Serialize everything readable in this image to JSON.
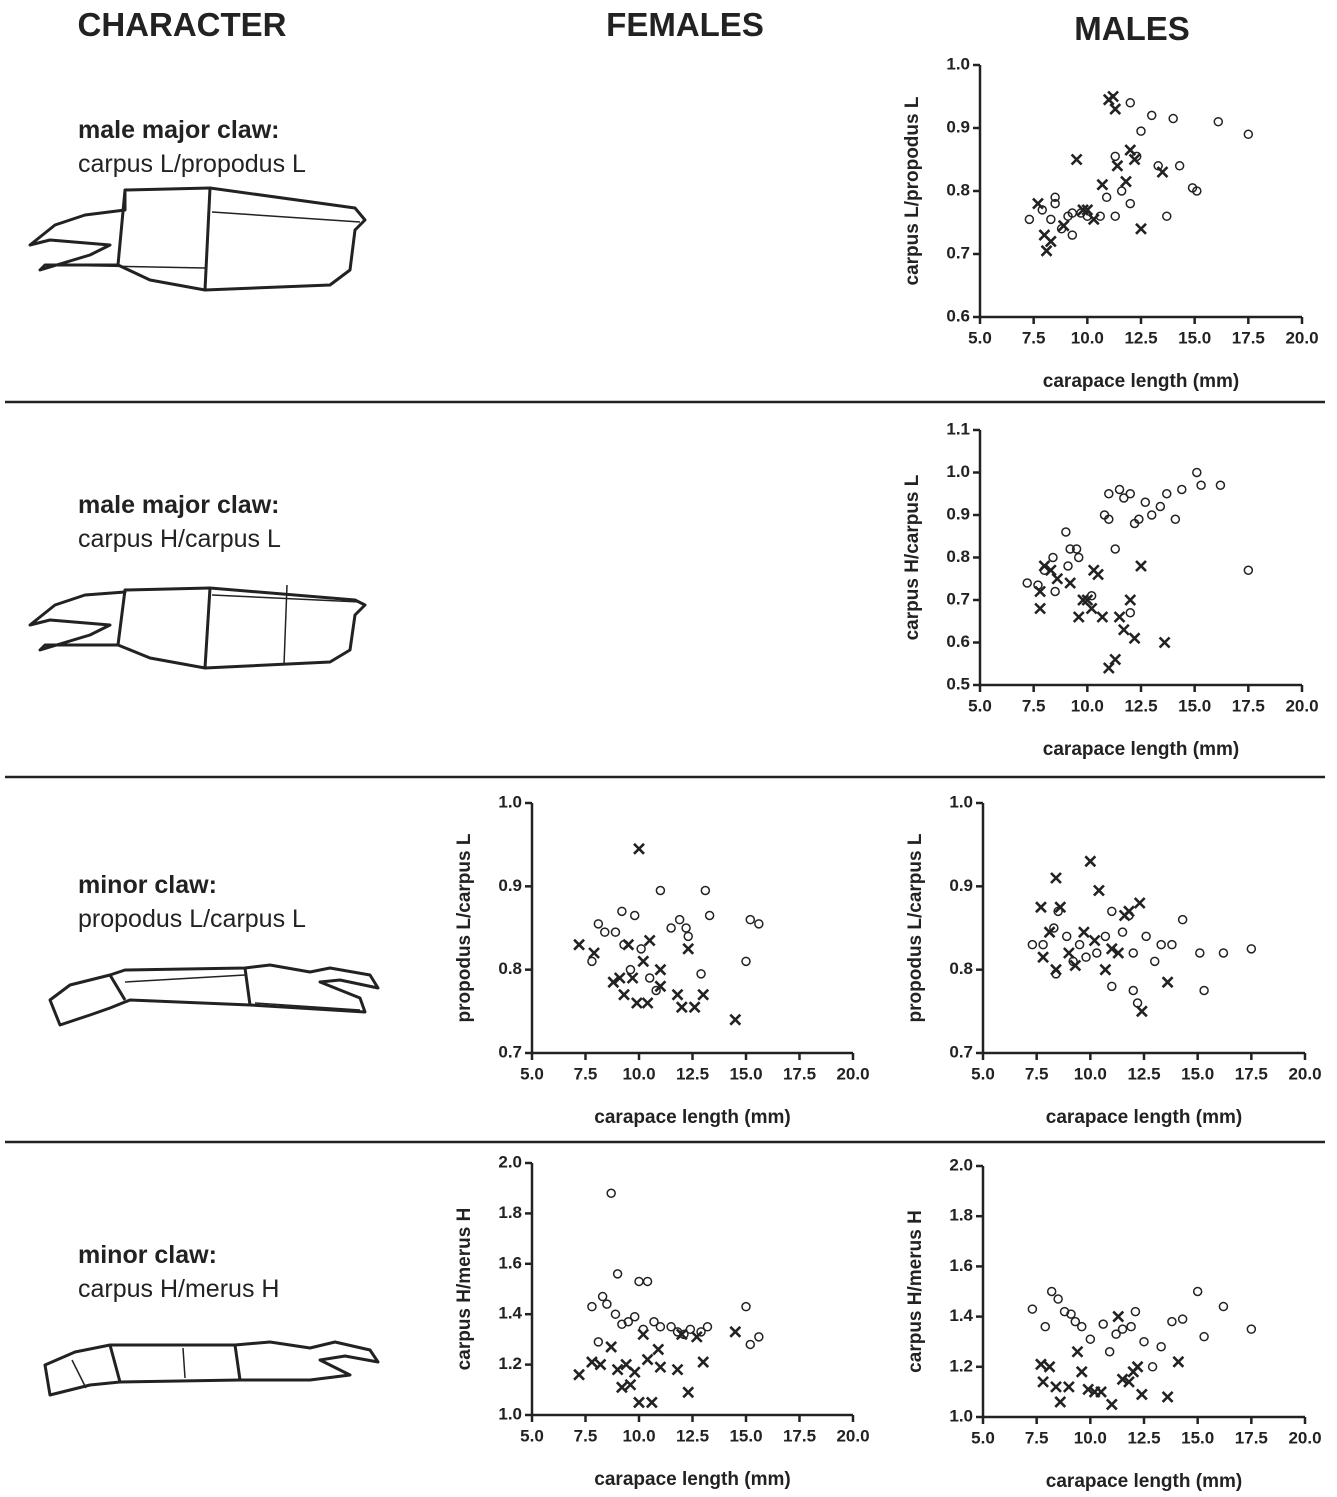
{
  "header": {
    "character": "CHARACTER",
    "females": "FEMALES",
    "males": "MALES"
  },
  "rows": [
    {
      "title": "male major claw:",
      "text": "carpus L/propodus L"
    },
    {
      "title": "male major claw:",
      "text": "carpus H/carpus L"
    },
    {
      "title": "minor claw:",
      "text": "propodus L/carpus L"
    },
    {
      "title": "minor claw:",
      "text": "carpus H/merus H"
    }
  ],
  "chart_data": [
    {
      "type": "scatter",
      "ylabel": "carpus L/propodus L",
      "xlabel": "carapace length (mm)",
      "xlim": [
        5,
        20
      ],
      "ylim": [
        0.6,
        1.0
      ],
      "xticks": [
        {
          "value": 5,
          "label": "5.0"
        },
        7.5,
        {
          "value": 10,
          "label": "10.0"
        },
        12.5,
        {
          "value": 15,
          "label": "15.0"
        },
        17.5,
        {
          "value": 20,
          "label": "20.0"
        }
      ],
      "yticks": [
        0.6,
        0.7,
        0.8,
        0.9,
        {
          "value": 1,
          "label": "1.0"
        }
      ],
      "series": [
        {
          "marker": "circle",
          "color": "#222222",
          "x": [
            7.3,
            7.9,
            8.3,
            8.5,
            8.5,
            8.8,
            9.1,
            9.3,
            9.3,
            9.7,
            10.0,
            10.6,
            10.9,
            11.3,
            11.3,
            11.6,
            12.0,
            12.0,
            12.3,
            12.5,
            13.0,
            13.3,
            13.7,
            14.0,
            14.3,
            14.9,
            15.1,
            16.1,
            17.5
          ],
          "values": [
            0.755,
            0.77,
            0.755,
            0.79,
            0.78,
            0.74,
            0.76,
            0.73,
            0.765,
            0.765,
            0.76,
            0.76,
            0.79,
            0.855,
            0.76,
            0.8,
            0.94,
            0.78,
            0.855,
            0.895,
            0.92,
            0.84,
            0.76,
            0.915,
            0.84,
            0.805,
            0.8,
            0.91,
            0.89
          ]
        },
        {
          "marker": "cross",
          "color": "#222222",
          "x": [
            7.7,
            8.0,
            8.1,
            8.3,
            8.9,
            9.5,
            9.8,
            10.0,
            10.3,
            10.7,
            11.0,
            11.2,
            11.3,
            11.4,
            11.8,
            12.0,
            12.2,
            12.5,
            13.5
          ],
          "values": [
            0.78,
            0.73,
            0.705,
            0.72,
            0.745,
            0.85,
            0.77,
            0.77,
            0.755,
            0.81,
            0.945,
            0.95,
            0.93,
            0.84,
            0.815,
            0.865,
            0.85,
            0.74,
            0.83
          ]
        }
      ]
    },
    {
      "type": "scatter",
      "ylabel": "carpus H/carpus L",
      "xlabel": "carapace length (mm)",
      "xlim": [
        5,
        20
      ],
      "ylim": [
        0.5,
        1.1
      ],
      "xticks": [
        {
          "value": 5,
          "label": "5.0"
        },
        7.5,
        {
          "value": 10,
          "label": "10.0"
        },
        12.5,
        {
          "value": 15,
          "label": "15.0"
        },
        17.5,
        {
          "value": 20,
          "label": "20.0"
        }
      ],
      "yticks": [
        0.5,
        0.6,
        0.7,
        0.8,
        0.9,
        {
          "value": 1,
          "label": "1.0"
        },
        1.1
      ],
      "series": [
        {
          "marker": "circle",
          "color": "#222222",
          "x": [
            7.2,
            7.7,
            8.0,
            8.4,
            8.5,
            9.0,
            9.1,
            9.2,
            9.5,
            9.6,
            10.2,
            10.8,
            11.0,
            11.0,
            11.3,
            11.5,
            11.7,
            12.0,
            12.0,
            12.2,
            12.4,
            12.7,
            13.0,
            13.4,
            13.7,
            14.1,
            14.4,
            15.1,
            15.3,
            16.2,
            17.5
          ],
          "values": [
            0.74,
            0.735,
            0.77,
            0.8,
            0.72,
            0.86,
            0.78,
            0.82,
            0.82,
            0.8,
            0.71,
            0.9,
            0.95,
            0.89,
            0.82,
            0.96,
            0.94,
            0.95,
            0.67,
            0.88,
            0.89,
            0.93,
            0.9,
            0.92,
            0.95,
            0.89,
            0.96,
            1.0,
            0.97,
            0.97,
            0.77
          ]
        },
        {
          "marker": "cross",
          "color": "#222222",
          "x": [
            7.8,
            7.8,
            8.0,
            8.3,
            8.6,
            9.2,
            9.6,
            9.8,
            10.0,
            10.2,
            10.3,
            10.5,
            10.7,
            11.0,
            11.3,
            11.5,
            11.7,
            12.0,
            12.2,
            12.5,
            13.6
          ],
          "values": [
            0.68,
            0.72,
            0.78,
            0.77,
            0.75,
            0.74,
            0.66,
            0.7,
            0.7,
            0.68,
            0.77,
            0.76,
            0.66,
            0.54,
            0.56,
            0.66,
            0.63,
            0.7,
            0.61,
            0.78,
            0.6
          ]
        }
      ]
    },
    {
      "type": "scatter",
      "ylabel": "propodus L/carpus L",
      "xlabel": "carapace length  (mm)",
      "xlim": [
        5,
        20
      ],
      "ylim": [
        0.7,
        1.0
      ],
      "xticks": [
        {
          "value": 5,
          "label": "5.0"
        },
        7.5,
        {
          "value": 10,
          "label": "10.0"
        },
        12.5,
        {
          "value": 15,
          "label": "15.0"
        },
        17.5,
        {
          "value": 20,
          "label": "20.0"
        }
      ],
      "yticks": [
        0.7,
        0.8,
        0.9,
        {
          "value": 1,
          "label": "1.0"
        }
      ],
      "series": [
        {
          "marker": "circle",
          "color": "#222222",
          "x": [
            7.8,
            8.1,
            8.4,
            8.9,
            9.2,
            9.3,
            9.6,
            9.8,
            10.1,
            10.5,
            10.8,
            11.0,
            11.5,
            11.9,
            12.2,
            12.3,
            12.9,
            13.1,
            13.3,
            15.0,
            15.2,
            15.6
          ],
          "values": [
            0.81,
            0.855,
            0.845,
            0.845,
            0.87,
            0.83,
            0.8,
            0.865,
            0.825,
            0.79,
            0.775,
            0.895,
            0.85,
            0.86,
            0.85,
            0.84,
            0.795,
            0.895,
            0.865,
            0.81,
            0.86,
            0.855
          ]
        },
        {
          "marker": "cross",
          "color": "#222222",
          "x": [
            7.2,
            7.9,
            8.8,
            9.1,
            9.3,
            9.5,
            9.7,
            9.9,
            10.0,
            10.2,
            10.4,
            10.5,
            11.0,
            11.0,
            11.8,
            12.0,
            12.3,
            12.6,
            13.0,
            14.5
          ],
          "values": [
            0.83,
            0.82,
            0.785,
            0.79,
            0.77,
            0.83,
            0.79,
            0.76,
            0.945,
            0.81,
            0.76,
            0.835,
            0.8,
            0.78,
            0.77,
            0.755,
            0.825,
            0.755,
            0.77,
            0.74
          ]
        }
      ]
    },
    {
      "type": "scatter",
      "ylabel": "propodus  L/carpus L",
      "xlabel": "carapace length  (mm)",
      "xlim": [
        5,
        20
      ],
      "ylim": [
        0.7,
        1.0
      ],
      "xticks": [
        {
          "value": 5,
          "label": "5.0"
        },
        7.5,
        {
          "value": 10,
          "label": "10.0"
        },
        12.5,
        {
          "value": 15,
          "label": "15.0"
        },
        17.5,
        {
          "value": 20,
          "label": "20.0"
        }
      ],
      "yticks": [
        0.7,
        0.8,
        0.9,
        {
          "value": 1,
          "label": "1.0"
        }
      ],
      "series": [
        {
          "marker": "circle",
          "color": "#222222",
          "x": [
            7.3,
            7.8,
            8.3,
            8.4,
            8.5,
            8.9,
            9.2,
            9.5,
            9.8,
            10.3,
            10.7,
            11.0,
            11.0,
            11.5,
            11.8,
            12.0,
            12.0,
            12.2,
            12.6,
            13.0,
            13.3,
            13.8,
            14.3,
            15.1,
            15.3,
            16.2,
            17.5
          ],
          "values": [
            0.83,
            0.83,
            0.85,
            0.795,
            0.87,
            0.84,
            0.81,
            0.83,
            0.815,
            0.82,
            0.84,
            0.78,
            0.87,
            0.845,
            0.865,
            0.775,
            0.82,
            0.76,
            0.84,
            0.81,
            0.83,
            0.83,
            0.86,
            0.82,
            0.775,
            0.82,
            0.825
          ]
        },
        {
          "marker": "cross",
          "color": "#222222",
          "x": [
            7.7,
            7.8,
            8.1,
            8.4,
            8.4,
            8.6,
            9.0,
            9.3,
            9.7,
            10.0,
            10.2,
            10.4,
            10.7,
            11.0,
            11.3,
            11.6,
            11.8,
            12.3,
            12.4,
            13.6
          ],
          "values": [
            0.875,
            0.815,
            0.845,
            0.91,
            0.8,
            0.875,
            0.82,
            0.805,
            0.845,
            0.93,
            0.835,
            0.895,
            0.8,
            0.825,
            0.82,
            0.865,
            0.87,
            0.88,
            0.75,
            0.785
          ]
        }
      ]
    },
    {
      "type": "scatter",
      "ylabel": "carpus H/merus H",
      "xlabel": "carapace length (mm)",
      "xlim": [
        5,
        20
      ],
      "ylim": [
        1,
        2
      ],
      "xticks": [
        {
          "value": 5,
          "label": "5.0"
        },
        7.5,
        {
          "value": 10,
          "label": "10.0"
        },
        12.5,
        {
          "value": 15,
          "label": "15.0"
        },
        17.5,
        {
          "value": 20,
          "label": "20.0"
        }
      ],
      "yticks": [
        {
          "value": 1,
          "label": "1.0"
        },
        1.2,
        1.4,
        1.6,
        1.8,
        {
          "value": 2,
          "label": "2.0"
        }
      ],
      "series": [
        {
          "marker": "circle",
          "color": "#222222",
          "x": [
            7.8,
            8.1,
            8.3,
            8.5,
            8.7,
            8.9,
            9.0,
            9.2,
            9.5,
            9.8,
            10.0,
            10.2,
            10.4,
            10.7,
            11.0,
            11.5,
            11.8,
            12.1,
            12.4,
            12.9,
            13.2,
            15.0,
            15.2,
            15.6
          ],
          "values": [
            1.43,
            1.29,
            1.47,
            1.44,
            1.88,
            1.4,
            1.56,
            1.36,
            1.37,
            1.39,
            1.53,
            1.34,
            1.53,
            1.37,
            1.35,
            1.35,
            1.33,
            1.32,
            1.34,
            1.33,
            1.35,
            1.43,
            1.28,
            1.31
          ]
        },
        {
          "marker": "cross",
          "color": "#222222",
          "x": [
            7.2,
            7.8,
            8.2,
            8.7,
            9.0,
            9.2,
            9.4,
            9.6,
            9.8,
            10.0,
            10.2,
            10.4,
            10.6,
            10.9,
            11.0,
            11.8,
            12.0,
            12.3,
            12.7,
            13.0,
            14.5
          ],
          "values": [
            1.16,
            1.21,
            1.2,
            1.27,
            1.18,
            1.11,
            1.2,
            1.12,
            1.17,
            1.05,
            1.32,
            1.22,
            1.05,
            1.26,
            1.19,
            1.18,
            1.32,
            1.09,
            1.31,
            1.21,
            1.33
          ]
        }
      ]
    },
    {
      "type": "scatter",
      "ylabel": "carpus H/merus H",
      "xlabel": "carapace length (mm)",
      "xlim": [
        5,
        20
      ],
      "ylim": [
        1,
        2
      ],
      "xticks": [
        {
          "value": 5,
          "label": "5.0"
        },
        7.5,
        {
          "value": 10,
          "label": "10.0"
        },
        12.5,
        {
          "value": 15,
          "label": "15.0"
        },
        17.5,
        {
          "value": 20,
          "label": "20.0"
        }
      ],
      "yticks": [
        {
          "value": 1,
          "label": "1.0"
        },
        1.2,
        1.4,
        1.6,
        1.8,
        {
          "value": 2,
          "label": "2.0"
        }
      ],
      "series": [
        {
          "marker": "circle",
          "color": "#222222",
          "x": [
            7.3,
            7.9,
            8.2,
            8.5,
            8.8,
            9.1,
            9.3,
            9.6,
            10.0,
            10.6,
            10.9,
            11.2,
            11.5,
            11.9,
            12.1,
            12.5,
            12.9,
            13.3,
            13.8,
            14.3,
            15.0,
            15.3,
            16.2,
            17.5
          ],
          "values": [
            1.43,
            1.36,
            1.5,
            1.47,
            1.42,
            1.41,
            1.38,
            1.36,
            1.31,
            1.37,
            1.26,
            1.33,
            1.35,
            1.36,
            1.42,
            1.3,
            1.2,
            1.28,
            1.38,
            1.39,
            1.5,
            1.32,
            1.44,
            1.35
          ]
        },
        {
          "marker": "cross",
          "color": "#222222",
          "x": [
            7.7,
            7.8,
            8.1,
            8.4,
            8.6,
            9.0,
            9.4,
            9.6,
            9.9,
            10.2,
            10.5,
            11.0,
            11.3,
            11.5,
            11.8,
            12.0,
            12.2,
            12.4,
            13.6,
            14.1
          ],
          "values": [
            1.21,
            1.14,
            1.2,
            1.12,
            1.06,
            1.12,
            1.26,
            1.18,
            1.11,
            1.1,
            1.1,
            1.05,
            1.4,
            1.15,
            1.14,
            1.18,
            1.2,
            1.09,
            1.08,
            1.22
          ]
        }
      ]
    }
  ]
}
